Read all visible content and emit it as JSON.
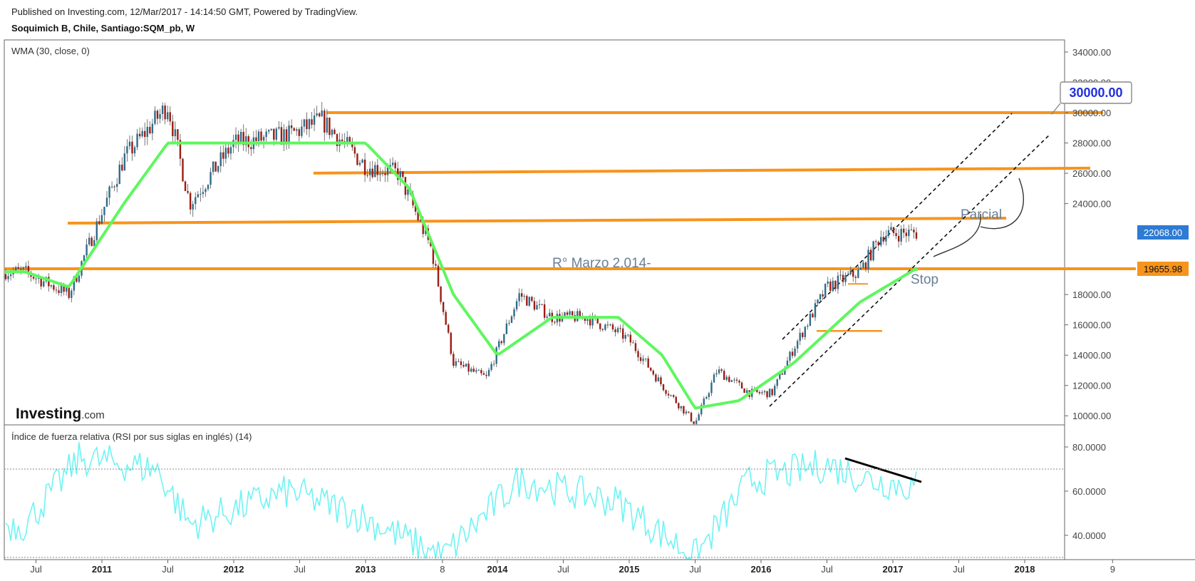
{
  "header": {
    "published": "Published on Investing.com, 12/Mar/2017 - 14:14:50 GMT, Powered by TradingView.",
    "symbol": "Soquimich B, Chile, Santiago:SQM_pb, W"
  },
  "price_pane": {
    "indicator_label": "WMA (30, close, 0)",
    "logo_main": "Investing",
    "logo_suffix": ".com",
    "y_ticks": [
      "34000.00",
      "32000.00",
      "30000.00",
      "28000.00",
      "26000.00",
      "24000.00",
      "22068.00",
      "19655.98",
      "18000.00",
      "16000.00",
      "14000.00",
      "12000.00",
      "10000.00"
    ],
    "last_price_label": "22068.00",
    "wma_value_label": "19655.98",
    "annotations": {
      "target": "30000.00",
      "parcial": "Parcial",
      "stop": "Stop",
      "resistance_note": "R° Marzo 2.014-"
    }
  },
  "rsi_pane": {
    "label": "Índice de fuerza relativa (RSI por sus siglas en inglés) (14)",
    "y_ticks": [
      "80.0000",
      "60.0000",
      "40.0000"
    ]
  },
  "x_axis": {
    "labels": [
      {
        "text": "Jul",
        "bold": false
      },
      {
        "text": "2011",
        "bold": true
      },
      {
        "text": "Jul",
        "bold": false
      },
      {
        "text": "2012",
        "bold": true
      },
      {
        "text": "Jul",
        "bold": false
      },
      {
        "text": "2013",
        "bold": true
      },
      {
        "text": "8",
        "bold": false
      },
      {
        "text": "2014",
        "bold": true
      },
      {
        "text": "Jul",
        "bold": false
      },
      {
        "text": "2015",
        "bold": true
      },
      {
        "text": "Jul",
        "bold": false
      },
      {
        "text": "2016",
        "bold": true
      },
      {
        "text": "Jul",
        "bold": false
      },
      {
        "text": "2017",
        "bold": true
      },
      {
        "text": "Jul",
        "bold": false
      },
      {
        "text": "2018",
        "bold": true
      },
      {
        "text": "9",
        "bold": false
      }
    ]
  },
  "colors": {
    "bull": "#2f6c8a",
    "bear": "#9b1c12",
    "wma": "#5ef75e",
    "rsi": "#6ff3f3",
    "level": "#f7941d",
    "price_tag": "#2e7bd3",
    "wma_tag": "#f7941d"
  },
  "chart_data": {
    "type": "line",
    "title": "Soquimich B, Chile, Santiago:SQM_pb, W",
    "price_series_keypoints": {
      "name": "SQM_pb weekly close (approx.)",
      "x": [
        "2010-06",
        "2010-10",
        "2011-03",
        "2011-07",
        "2011-09",
        "2012-01",
        "2012-06",
        "2012-09",
        "2013-01",
        "2013-04",
        "2013-07",
        "2013-09",
        "2013-12",
        "2014-03",
        "2014-06",
        "2014-09",
        "2014-12",
        "2015-01",
        "2015-04",
        "2015-07",
        "2015-09",
        "2015-12",
        "2016-02",
        "2016-04",
        "2016-07",
        "2016-10",
        "2016-12",
        "2017-03"
      ],
      "y": [
        19500,
        18000,
        27000,
        30500,
        24000,
        28000,
        28500,
        29500,
        26500,
        26000,
        21000,
        13500,
        12500,
        18000,
        16500,
        16500,
        15500,
        15000,
        12000,
        9500,
        13000,
        11500,
        11500,
        14500,
        18500,
        19500,
        22000,
        22068
      ]
    },
    "wma_series_keypoints": {
      "name": "WMA (30, close, 0)",
      "x": [
        "2010-06",
        "2010-10",
        "2011-03",
        "2011-07",
        "2012-01",
        "2012-09",
        "2013-01",
        "2013-05",
        "2013-09",
        "2014-01",
        "2014-06",
        "2014-12",
        "2015-04",
        "2015-07",
        "2015-11",
        "2016-04",
        "2016-10",
        "2017-03"
      ],
      "y": [
        19500,
        18500,
        24000,
        28000,
        28000,
        28000,
        28000,
        25000,
        18000,
        14000,
        16500,
        16500,
        14000,
        10500,
        11000,
        13500,
        17500,
        19656
      ]
    },
    "rsi_series_keypoints": {
      "name": "RSI (14)",
      "x": [
        "2010-06",
        "2010-11",
        "2011-06",
        "2011-09",
        "2012-06",
        "2012-12",
        "2013-08",
        "2014-03",
        "2014-12",
        "2015-07",
        "2015-12",
        "2016-07",
        "2016-11",
        "2017-03"
      ],
      "y": [
        45,
        75,
        70,
        45,
        60,
        50,
        30,
        65,
        55,
        30,
        65,
        72,
        65,
        62
      ]
    },
    "horizontal_levels": [
      30000,
      26200,
      22900,
      19700
    ],
    "xlabel": "",
    "ylabel": "",
    "ylim": [
      9400,
      34800
    ],
    "rsi_ylim": [
      29,
      90
    ]
  }
}
